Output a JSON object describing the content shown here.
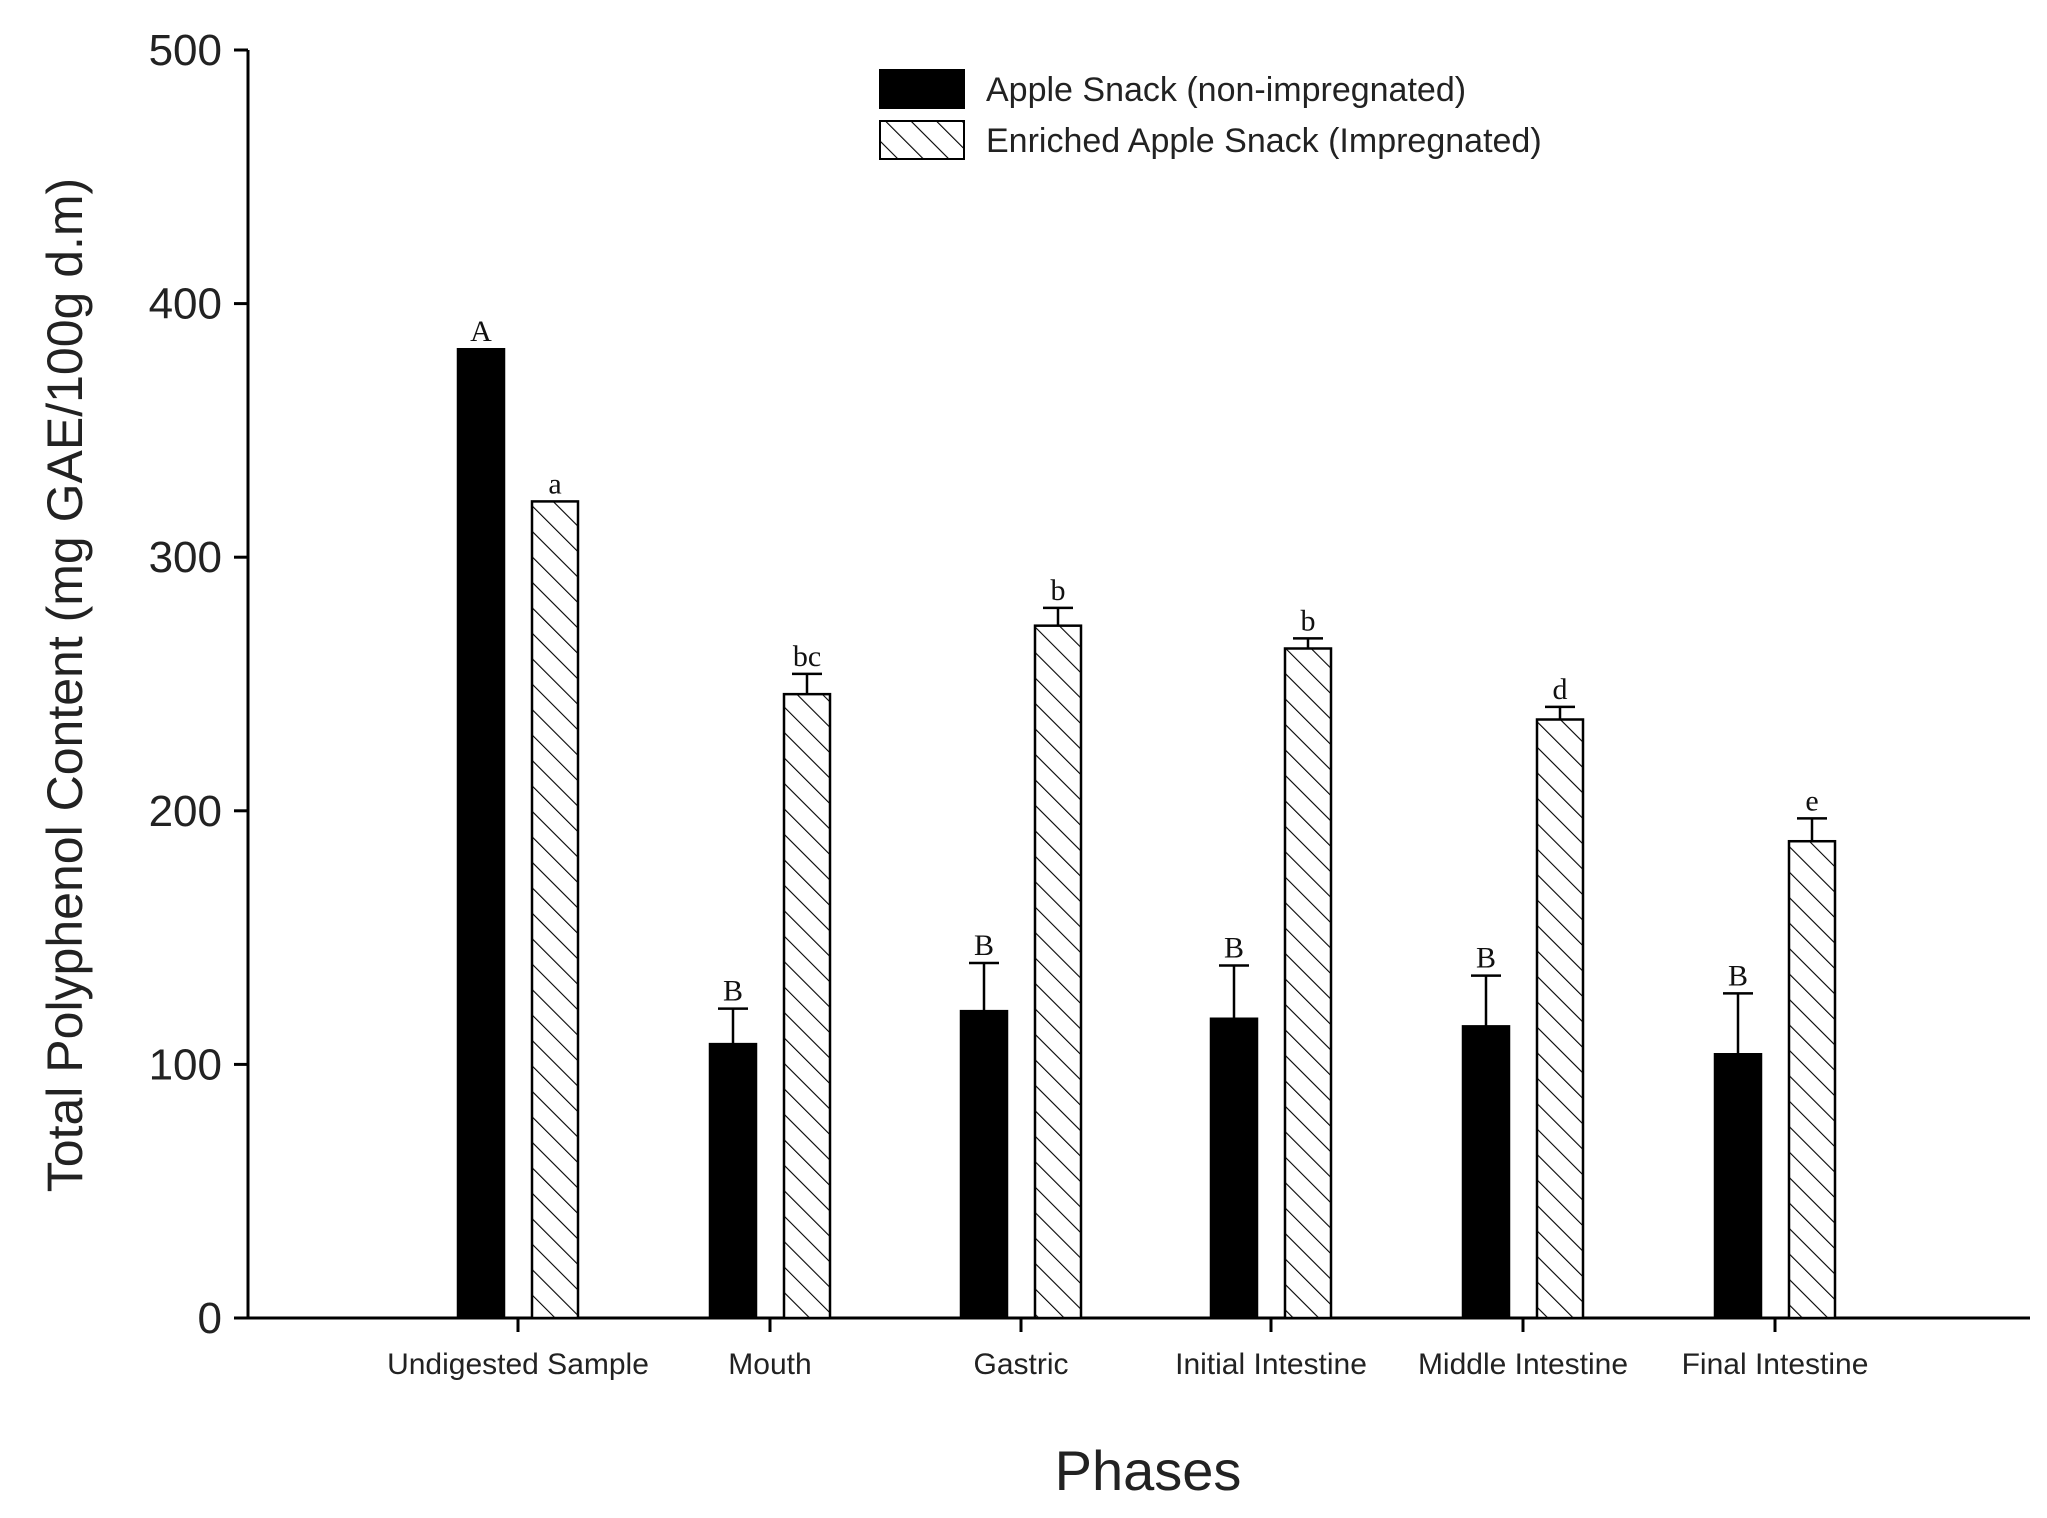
{
  "chart_data": {
    "type": "bar",
    "ylabel": "Total Polyphenol Content  (mg GAE/100g d.m)",
    "xlabel": "Phases",
    "ylim": [
      0,
      500
    ],
    "yticks": [
      0,
      100,
      200,
      300,
      400,
      500
    ],
    "categories": [
      "Undigested Sample",
      "Mouth",
      "Gastric",
      "Initial Intestine",
      "Middle Intestine",
      "Final Intestine"
    ],
    "series": [
      {
        "name": "Apple Snack (non-impregnated)",
        "fill": "solid",
        "color": "#000000",
        "values": [
          382,
          108,
          121,
          118,
          115,
          104
        ],
        "errors": [
          0,
          14,
          19,
          21,
          20,
          24
        ],
        "letters": [
          "A",
          "B",
          "B",
          "B",
          "B",
          "B"
        ]
      },
      {
        "name": "Enriched Apple Snack (Impregnated)",
        "fill": "hatched",
        "color": "#ffffff",
        "values": [
          322,
          246,
          273,
          264,
          236,
          188
        ],
        "errors": [
          0,
          8,
          7,
          4,
          5,
          9
        ],
        "letters": [
          "a",
          "bc",
          "b",
          "b",
          "d",
          "e"
        ]
      }
    ],
    "legend_position": "top-right",
    "grid": false
  }
}
